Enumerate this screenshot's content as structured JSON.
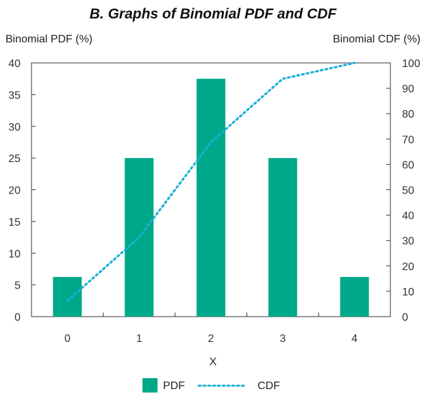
{
  "chart_data": {
    "type": "bar",
    "title": "B. Graphs of Binomial PDF and CDF",
    "xlabel": "X",
    "ylabel_left": "Binomial PDF (%)",
    "ylabel_right": "Binomial CDF (%)",
    "categories": [
      "0",
      "1",
      "2",
      "3",
      "4"
    ],
    "ylim_left": [
      0,
      40
    ],
    "ylim_right": [
      0,
      100
    ],
    "yticks_left": [
      "0",
      "5",
      "10",
      "15",
      "20",
      "25",
      "30",
      "35",
      "40"
    ],
    "yticks_right": [
      "0",
      "10",
      "20",
      "30",
      "40",
      "50",
      "60",
      "70",
      "80",
      "90",
      "100"
    ],
    "series": [
      {
        "name": "PDF",
        "kind": "bar",
        "axis": "left",
        "color": "#00a88a",
        "values": [
          6.25,
          25,
          37.5,
          25,
          6.25
        ]
      },
      {
        "name": "CDF",
        "kind": "dotted-line",
        "axis": "right",
        "color": "#1ab0d8",
        "values": [
          6.25,
          31.25,
          68.75,
          93.75,
          100
        ]
      }
    ],
    "legend_position": "bottom-center",
    "grid": false
  }
}
